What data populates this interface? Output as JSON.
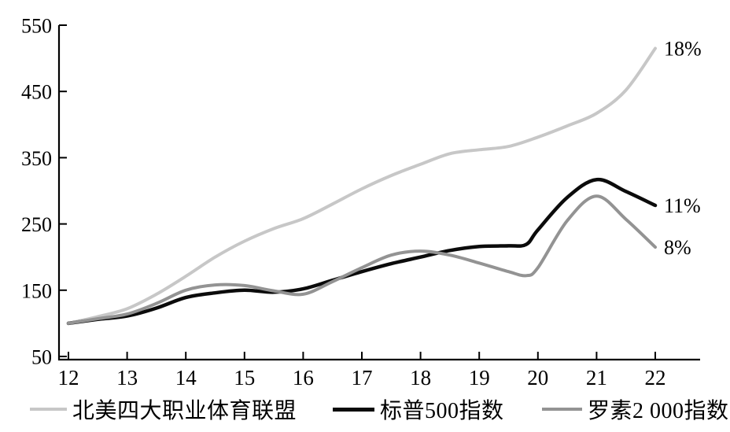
{
  "chart_data": {
    "type": "line",
    "title": "",
    "xlabel": "",
    "ylabel": "",
    "x_axis_years": [
      12,
      13,
      14,
      15,
      16,
      17,
      18,
      19,
      20,
      21,
      22
    ],
    "x_tick_labels": [
      "12",
      "13",
      "14",
      "15",
      "16",
      "17",
      "18",
      "19",
      "20",
      "21",
      "22"
    ],
    "y_tick_labels": [
      "50",
      "150",
      "250",
      "350",
      "450",
      "550"
    ],
    "y_ticks": [
      50,
      150,
      250,
      350,
      450,
      550
    ],
    "ylim": [
      50,
      550
    ],
    "xlim": [
      12,
      22
    ],
    "grid": false,
    "legend_position": "bottom",
    "background_color": "#ffffff",
    "axis_color": "#000000",
    "series": [
      {
        "name": "北美四大职业体育联盟",
        "color": "#c7c7c7",
        "line_width": 4,
        "end_label": "18%",
        "points": [
          [
            12,
            100
          ],
          [
            12.5,
            110
          ],
          [
            13,
            122
          ],
          [
            13.5,
            144
          ],
          [
            14,
            171
          ],
          [
            14.5,
            200
          ],
          [
            15,
            224
          ],
          [
            15.5,
            243
          ],
          [
            16,
            258
          ],
          [
            16.5,
            280
          ],
          [
            17,
            303
          ],
          [
            17.5,
            323
          ],
          [
            18,
            340
          ],
          [
            18.5,
            356
          ],
          [
            19,
            362
          ],
          [
            19.5,
            367
          ],
          [
            20,
            381
          ],
          [
            20.5,
            398
          ],
          [
            21,
            417
          ],
          [
            21.5,
            452
          ],
          [
            22,
            515
          ]
        ]
      },
      {
        "name": "标普500指数",
        "color": "#0b0b0b",
        "line_width": 4.5,
        "end_label": "11%",
        "points": [
          [
            12,
            100
          ],
          [
            12.5,
            106
          ],
          [
            13,
            111
          ],
          [
            13.5,
            123
          ],
          [
            14,
            139
          ],
          [
            14.5,
            146
          ],
          [
            15,
            150
          ],
          [
            15.5,
            147
          ],
          [
            16,
            152
          ],
          [
            16.5,
            165
          ],
          [
            17,
            178
          ],
          [
            17.5,
            190
          ],
          [
            18,
            200
          ],
          [
            18.5,
            210
          ],
          [
            19,
            216
          ],
          [
            19.5,
            217
          ],
          [
            19.8,
            219
          ],
          [
            20,
            241
          ],
          [
            20.5,
            290
          ],
          [
            21,
            317
          ],
          [
            21.5,
            299
          ],
          [
            22,
            278
          ]
        ]
      },
      {
        "name": "罗素2 000指数",
        "color": "#939393",
        "line_width": 4,
        "end_label": "8%",
        "points": [
          [
            12,
            100
          ],
          [
            12.5,
            107
          ],
          [
            13,
            114
          ],
          [
            13.5,
            130
          ],
          [
            14,
            150
          ],
          [
            14.5,
            158
          ],
          [
            15,
            157
          ],
          [
            15.5,
            149
          ],
          [
            16,
            144
          ],
          [
            16.5,
            163
          ],
          [
            17,
            184
          ],
          [
            17.5,
            203
          ],
          [
            18,
            209
          ],
          [
            18.5,
            203
          ],
          [
            19,
            191
          ],
          [
            19.5,
            178
          ],
          [
            19.8,
            172
          ],
          [
            20,
            184
          ],
          [
            20.5,
            255
          ],
          [
            21,
            292
          ],
          [
            21.5,
            257
          ],
          [
            22,
            215
          ]
        ]
      }
    ]
  }
}
